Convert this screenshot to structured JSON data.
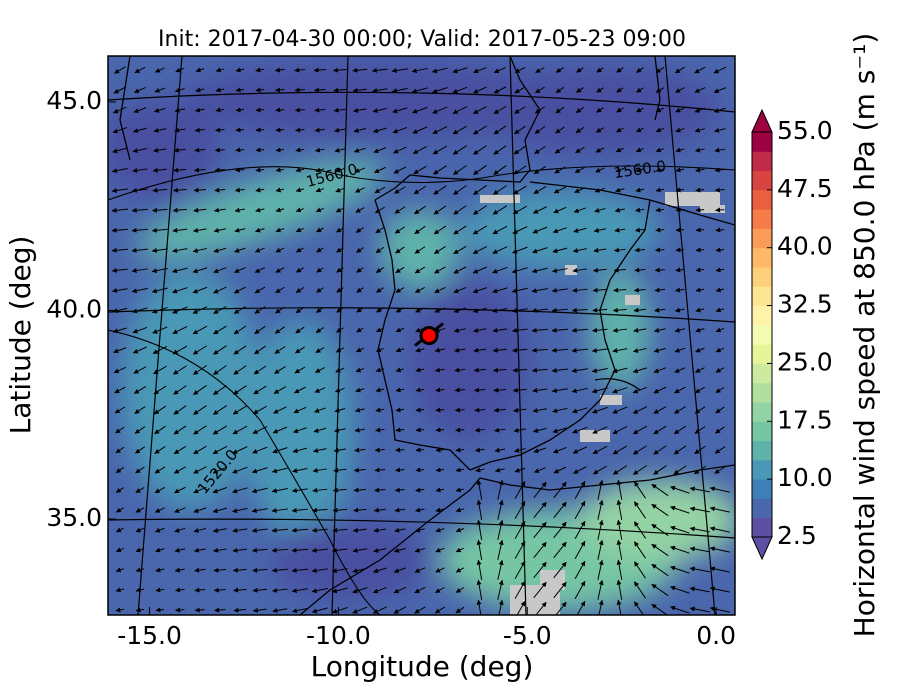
{
  "title": "Init: 2017-04-30 00:00; Valid: 2017-05-23 09:00",
  "x_axis": {
    "label": "Longitude (deg)",
    "lim": [
      -16.1,
      0.5
    ],
    "ticks": [
      {
        "value": -15,
        "label": "-15.0"
      },
      {
        "value": -10,
        "label": "-10.0"
      },
      {
        "value": -5,
        "label": "-5.0"
      },
      {
        "value": 0,
        "label": "0.0"
      }
    ]
  },
  "y_axis": {
    "label": "Latitude (deg)",
    "lim": [
      32.7,
      46.1
    ],
    "ticks": [
      {
        "value": 35,
        "label": "35.0"
      },
      {
        "value": 40,
        "label": "40.0"
      },
      {
        "value": 45,
        "label": "45.0"
      }
    ]
  },
  "marker": {
    "lon": -7.6,
    "lat": 39.4,
    "color": "#ff0000"
  },
  "contour_labels": [
    "1560.0",
    "1560.0",
    "1520.0"
  ],
  "colorbar": {
    "label": "Horizontal wind speed at 850.0 hPa (m s⁻¹)",
    "lim": [
      2.5,
      55
    ],
    "step": 2.5,
    "colors": [
      "#5e4fa2",
      "#4a66ad",
      "#3f7fb8",
      "#4a98b5",
      "#5fb2aa",
      "#76c6a4",
      "#94d3a4",
      "#b1df9f",
      "#cceaa0",
      "#e6f598",
      "#f5fbb0",
      "#fff3aa",
      "#fee593",
      "#fdd17c",
      "#fdb868",
      "#fa9b58",
      "#f67c4a",
      "#ea603f",
      "#d8443f",
      "#c22a4a",
      "#9e0142"
    ],
    "ticks": [
      {
        "value": 2.5,
        "label": "2.5"
      },
      {
        "value": 10,
        "label": "10.0"
      },
      {
        "value": 17.5,
        "label": "17.5"
      },
      {
        "value": 25,
        "label": "25.0"
      },
      {
        "value": 32.5,
        "label": "32.5"
      },
      {
        "value": 40,
        "label": "40.0"
      },
      {
        "value": 47.5,
        "label": "47.5"
      },
      {
        "value": 55,
        "label": "55.0"
      }
    ]
  }
}
